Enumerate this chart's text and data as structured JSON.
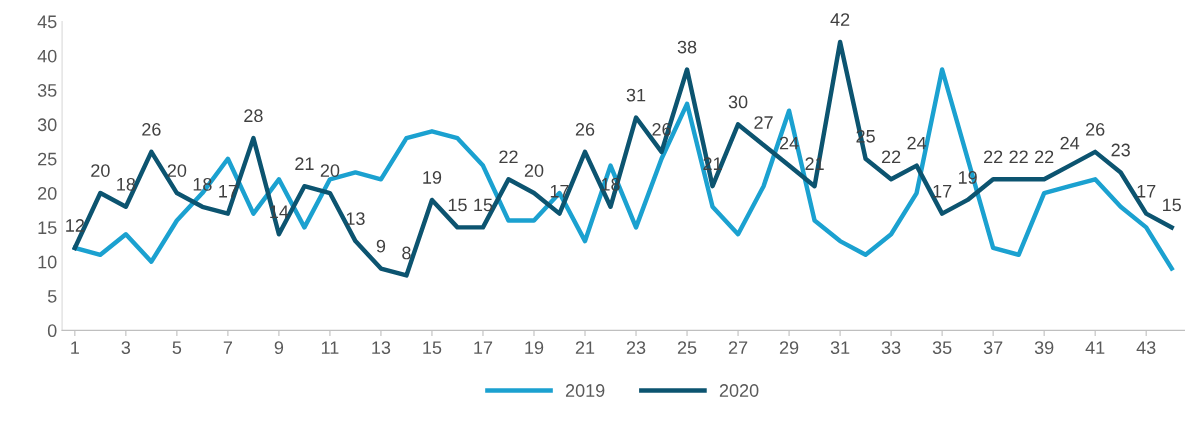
{
  "chart_data": {
    "type": "line",
    "x": [
      1,
      2,
      3,
      4,
      5,
      6,
      7,
      8,
      9,
      10,
      11,
      12,
      13,
      14,
      15,
      16,
      17,
      18,
      19,
      20,
      21,
      22,
      23,
      24,
      25,
      26,
      27,
      28,
      29,
      30,
      31,
      32,
      33,
      34,
      35,
      36,
      37,
      38,
      39,
      40,
      41,
      42,
      43,
      44
    ],
    "xlim": [
      0.5,
      44.5
    ],
    "xticks": [
      1,
      3,
      5,
      7,
      9,
      11,
      13,
      15,
      17,
      19,
      21,
      23,
      25,
      27,
      29,
      31,
      33,
      35,
      37,
      39,
      41,
      43
    ],
    "ylim": [
      0,
      45
    ],
    "yticks": [
      0,
      5,
      10,
      15,
      20,
      25,
      30,
      35,
      40,
      45
    ],
    "grid": false,
    "legend": "bottom",
    "marker": "none",
    "line_style": "solid",
    "series": [
      {
        "name": "2019",
        "color": "#1ba1d0",
        "values": [
          12,
          11,
          14,
          10,
          16,
          20,
          25,
          17,
          22,
          15,
          22,
          23,
          22,
          28,
          29,
          28,
          24,
          16,
          16,
          20,
          13,
          24,
          15,
          25,
          33,
          18,
          14,
          21,
          32,
          16,
          13,
          11,
          14,
          20,
          38,
          25,
          12,
          11,
          20,
          21,
          22,
          18,
          15,
          9
        ]
      },
      {
        "name": "2020",
        "color": "#0c5470",
        "data_labels": true,
        "values": [
          12,
          20,
          18,
          26,
          20,
          18,
          17,
          28,
          14,
          21,
          20,
          13,
          9,
          8,
          19,
          15,
          15,
          22,
          20,
          17,
          26,
          18,
          31,
          26,
          38,
          21,
          30,
          27,
          24,
          21,
          42,
          25,
          22,
          24,
          17,
          19,
          22,
          22,
          22,
          24,
          26,
          23,
          17,
          15
        ]
      }
    ]
  }
}
